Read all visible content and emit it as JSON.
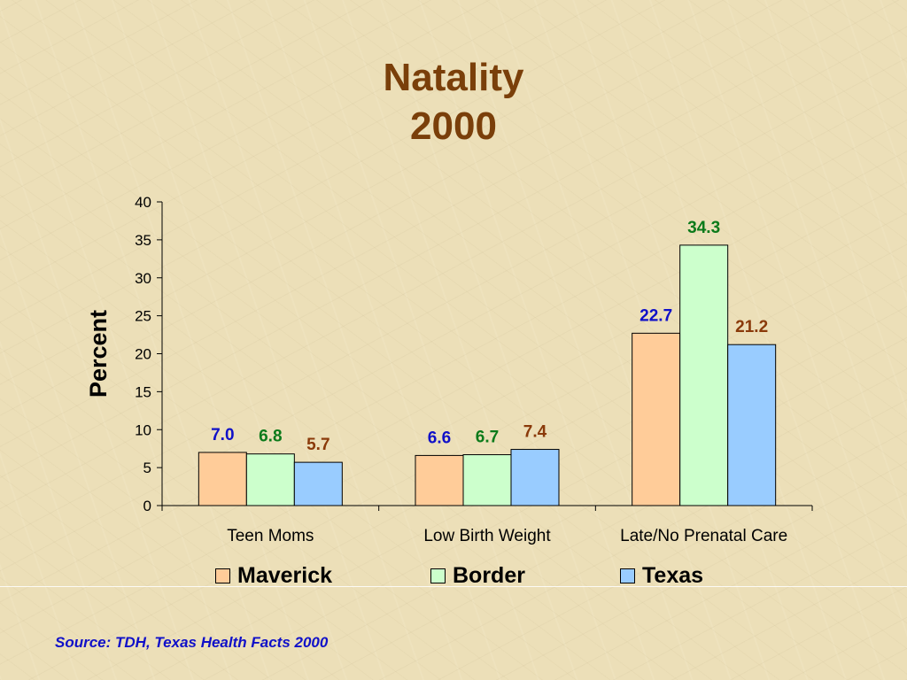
{
  "title_lines": [
    "Natality",
    "2000"
  ],
  "source": "Source:  TDH, Texas Health Facts 2000",
  "colors": {
    "title": "#7a3f0a",
    "source": "#1010c8"
  },
  "chart_data": {
    "type": "bar",
    "title": "Natality 2000",
    "ylabel": "Percent",
    "xlabel": "",
    "ylim": [
      0,
      40
    ],
    "yticks": [
      0,
      5,
      10,
      15,
      20,
      25,
      30,
      35,
      40
    ],
    "categories": [
      "Teen Moms",
      "Low Birth Weight",
      "Late/No Prenatal Care"
    ],
    "series": [
      {
        "name": "Maverick",
        "values": [
          7.0,
          6.6,
          22.7
        ],
        "labels": [
          "7.0",
          "6.6",
          "22.7"
        ],
        "color": "#ffcc99",
        "label_color": "#1010c8"
      },
      {
        "name": "Border",
        "values": [
          6.8,
          6.7,
          34.3
        ],
        "labels": [
          "6.8",
          "6.7",
          "34.3"
        ],
        "color": "#ccffcc",
        "label_color": "#0b7a1a"
      },
      {
        "name": "Texas",
        "values": [
          5.7,
          7.4,
          21.2
        ],
        "labels": [
          "5.7",
          "7.4",
          "21.2"
        ],
        "color": "#99ccff",
        "label_color": "#8a3a0a"
      }
    ],
    "legend": "bottom",
    "grid": false
  }
}
